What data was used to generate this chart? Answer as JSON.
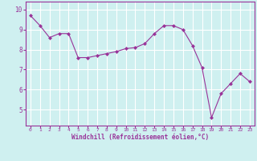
{
  "x": [
    0,
    1,
    2,
    3,
    4,
    5,
    6,
    7,
    8,
    9,
    10,
    11,
    12,
    13,
    14,
    15,
    16,
    17,
    18,
    19,
    20,
    21,
    22,
    23
  ],
  "y": [
    9.7,
    9.2,
    8.6,
    8.8,
    8.8,
    7.6,
    7.6,
    7.7,
    7.8,
    7.9,
    8.05,
    8.1,
    8.3,
    8.8,
    9.2,
    9.2,
    9.0,
    8.2,
    7.1,
    4.6,
    5.8,
    6.3,
    6.8,
    6.4
  ],
  "line_color": "#993399",
  "marker": "D",
  "marker_size": 2.0,
  "bg_color": "#cff0f0",
  "grid_color": "#ffffff",
  "xlabel": "Windchill (Refroidissement éolien,°C)",
  "xlabel_color": "#993399",
  "tick_color": "#993399",
  "spine_color": "#993399",
  "yticks": [
    5,
    6,
    7,
    8,
    9,
    10
  ],
  "ylim": [
    4.2,
    10.4
  ],
  "xlim": [
    -0.5,
    23.5
  ],
  "xticks": [
    0,
    1,
    2,
    3,
    4,
    5,
    6,
    7,
    8,
    9,
    10,
    11,
    12,
    13,
    14,
    15,
    16,
    17,
    18,
    19,
    20,
    21,
    22,
    23
  ]
}
